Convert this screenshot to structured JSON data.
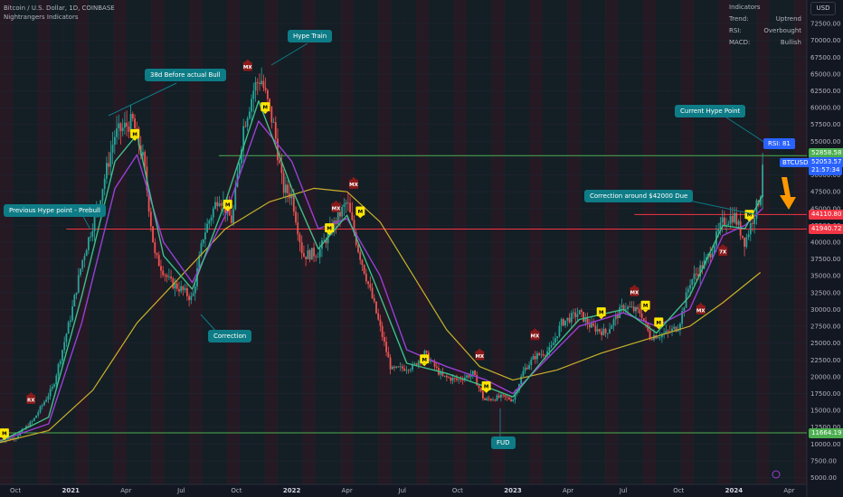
{
  "header": {
    "symbol_line": "Bitcoin / U.S. Dollar, 1D, COINBASE",
    "indicator_line": "Nightrangers Indicators"
  },
  "indicator_panel": {
    "title": "Indicators",
    "rows": [
      {
        "label": "Trend:",
        "value": "Uptrend"
      },
      {
        "label": "RSI:",
        "value": "Overbought"
      },
      {
        "label": "MACD:",
        "value": "Bullish"
      }
    ]
  },
  "currency": "USD",
  "price_tags": {
    "level_high": "52858.58",
    "current": "52053.57",
    "countdown": "21:57:34",
    "resistance": "44110.80",
    "support": "41940.72",
    "bottom": "11664.19"
  },
  "symbol_tag": "BTCUSD",
  "annotations": {
    "hype_train": "Hype Train",
    "days_before_bull": "38d Before actual Bull",
    "prev_hype": "Previous Hype point - Prebull",
    "correction": "Correction",
    "fud": "FUD",
    "correction_42k": "Correction around $42000 Due",
    "current_hype": "Current Hype Point",
    "rsi": "RSI: 81"
  },
  "colors": {
    "background": "#131722",
    "up": "#26a69a",
    "down": "#ef5350",
    "ma_slow": "#c9b02b",
    "ma_fast": "#9b3fd4",
    "ma_mid": "#3fbf8a",
    "annotation": "#0e7c86",
    "green_level": "#4caf50",
    "red_level": "#f23645"
  },
  "chart_data": {
    "type": "candlestick",
    "ylim": [
      4000,
      76000
    ],
    "y_ticks": [
      "5000.00",
      "7500.00",
      "10000.00",
      "12500.00",
      "15000.00",
      "17500.00",
      "20000.00",
      "22500.00",
      "25000.00",
      "27500.00",
      "30000.00",
      "32500.00",
      "35000.00",
      "37500.00",
      "40000.00",
      "42500.00",
      "45000.00",
      "47500.00",
      "50000.00",
      "52500.00",
      "55000.00",
      "57500.00",
      "60000.00",
      "62500.00",
      "65000.00",
      "67500.00",
      "70000.00",
      "72500.00"
    ],
    "x_ticks": [
      "Oct",
      "2021",
      "Apr",
      "Jul",
      "Oct",
      "2022",
      "Apr",
      "Jul",
      "Oct",
      "2023",
      "Apr",
      "Jul",
      "Oct",
      "2024",
      "Apr"
    ],
    "x_tick_values": [
      2020.75,
      2021.0,
      2021.25,
      2021.5,
      2021.75,
      2022.0,
      2022.25,
      2022.5,
      2022.75,
      2023.0,
      2023.25,
      2023.5,
      2023.75,
      2024.0,
      2024.25
    ],
    "xlim": [
      2020.68,
      2024.33
    ],
    "price_path": [
      [
        2020.68,
        10500
      ],
      [
        2020.75,
        11000
      ],
      [
        2020.83,
        13500
      ],
      [
        2020.92,
        18500
      ],
      [
        2021.0,
        29000
      ],
      [
        2021.05,
        37000
      ],
      [
        2021.12,
        45000
      ],
      [
        2021.2,
        56000
      ],
      [
        2021.28,
        58000
      ],
      [
        2021.33,
        52000
      ],
      [
        2021.38,
        38000
      ],
      [
        2021.45,
        34000
      ],
      [
        2021.5,
        33000
      ],
      [
        2021.55,
        31500
      ],
      [
        2021.6,
        41000
      ],
      [
        2021.67,
        47000
      ],
      [
        2021.73,
        43000
      ],
      [
        2021.78,
        57000
      ],
      [
        2021.83,
        63000
      ],
      [
        2021.86,
        64500
      ],
      [
        2021.92,
        57000
      ],
      [
        2021.96,
        48000
      ],
      [
        2022.0,
        47000
      ],
      [
        2022.05,
        38000
      ],
      [
        2022.12,
        38500
      ],
      [
        2022.18,
        42000
      ],
      [
        2022.25,
        46000
      ],
      [
        2022.3,
        39000
      ],
      [
        2022.37,
        31000
      ],
      [
        2022.45,
        21000
      ],
      [
        2022.55,
        21500
      ],
      [
        2022.6,
        23500
      ],
      [
        2022.68,
        20000
      ],
      [
        2022.75,
        19500
      ],
      [
        2022.82,
        20500
      ],
      [
        2022.87,
        16500
      ],
      [
        2022.95,
        17000
      ],
      [
        2023.0,
        16600
      ],
      [
        2023.05,
        21000
      ],
      [
        2023.1,
        23000
      ],
      [
        2023.17,
        24000
      ],
      [
        2023.22,
        28000
      ],
      [
        2023.3,
        29500
      ],
      [
        2023.35,
        27500
      ],
      [
        2023.42,
        26500
      ],
      [
        2023.5,
        30500
      ],
      [
        2023.58,
        29500
      ],
      [
        2023.62,
        26000
      ],
      [
        2023.7,
        26500
      ],
      [
        2023.75,
        27500
      ],
      [
        2023.8,
        34000
      ],
      [
        2023.88,
        37500
      ],
      [
        2023.95,
        43000
      ],
      [
        2024.0,
        44000
      ],
      [
        2024.05,
        40000
      ],
      [
        2024.08,
        43000
      ],
      [
        2024.12,
        47000
      ],
      [
        2024.13,
        52053
      ]
    ],
    "series": [
      {
        "name": "slow MA",
        "values": [
          [
            2020.68,
            10200
          ],
          [
            2020.9,
            12000
          ],
          [
            2021.1,
            18000
          ],
          [
            2021.3,
            28000
          ],
          [
            2021.5,
            35000
          ],
          [
            2021.7,
            42000
          ],
          [
            2021.9,
            46000
          ],
          [
            2022.1,
            48000
          ],
          [
            2022.25,
            47500
          ],
          [
            2022.4,
            43000
          ],
          [
            2022.55,
            35000
          ],
          [
            2022.7,
            27000
          ],
          [
            2022.85,
            21500
          ],
          [
            2023.0,
            19500
          ],
          [
            2023.2,
            21000
          ],
          [
            2023.4,
            23500
          ],
          [
            2023.6,
            25500
          ],
          [
            2023.8,
            27500
          ],
          [
            2023.95,
            31000
          ],
          [
            2024.12,
            35500
          ]
        ]
      },
      {
        "name": "fast MA",
        "values": [
          [
            2020.68,
            10500
          ],
          [
            2020.9,
            13000
          ],
          [
            2021.05,
            28000
          ],
          [
            2021.2,
            48000
          ],
          [
            2021.3,
            53000
          ],
          [
            2021.42,
            40000
          ],
          [
            2021.55,
            34000
          ],
          [
            2021.7,
            44000
          ],
          [
            2021.85,
            58000
          ],
          [
            2022.0,
            52000
          ],
          [
            2022.12,
            42000
          ],
          [
            2022.25,
            43500
          ],
          [
            2022.4,
            35000
          ],
          [
            2022.52,
            24000
          ],
          [
            2022.7,
            21500
          ],
          [
            2022.88,
            19500
          ],
          [
            2023.0,
            17500
          ],
          [
            2023.15,
            22500
          ],
          [
            2023.3,
            27500
          ],
          [
            2023.5,
            29500
          ],
          [
            2023.65,
            27500
          ],
          [
            2023.8,
            30000
          ],
          [
            2023.95,
            41000
          ],
          [
            2024.05,
            42500
          ],
          [
            2024.13,
            45000
          ]
        ]
      },
      {
        "name": "mid MA",
        "values": [
          [
            2020.68,
            10400
          ],
          [
            2020.9,
            14000
          ],
          [
            2021.05,
            32000
          ],
          [
            2021.2,
            52000
          ],
          [
            2021.3,
            56000
          ],
          [
            2021.42,
            38000
          ],
          [
            2021.55,
            33000
          ],
          [
            2021.7,
            46000
          ],
          [
            2021.85,
            61000
          ],
          [
            2022.0,
            48000
          ],
          [
            2022.12,
            39000
          ],
          [
            2022.25,
            44000
          ],
          [
            2022.4,
            32000
          ],
          [
            2022.52,
            22000
          ],
          [
            2022.7,
            20500
          ],
          [
            2022.88,
            18500
          ],
          [
            2023.0,
            17000
          ],
          [
            2023.15,
            23000
          ],
          [
            2023.3,
            28500
          ],
          [
            2023.5,
            30000
          ],
          [
            2023.65,
            26500
          ],
          [
            2023.8,
            32000
          ],
          [
            2023.95,
            42500
          ],
          [
            2024.05,
            42000
          ],
          [
            2024.13,
            47000
          ]
        ]
      }
    ],
    "signals": [
      {
        "label": "M",
        "kind": "buy",
        "x": 2020.7,
        "y": 11500
      },
      {
        "label": "RX",
        "kind": "sell",
        "x": 2020.82,
        "y": 16500
      },
      {
        "label": "M",
        "kind": "buy",
        "x": 2021.29,
        "y": 56000
      },
      {
        "label": "MX",
        "kind": "sell",
        "x": 2021.8,
        "y": 66000
      },
      {
        "label": "M",
        "kind": "buy",
        "x": 2021.88,
        "y": 60000
      },
      {
        "label": "M",
        "kind": "buy",
        "x": 2021.71,
        "y": 45500
      },
      {
        "label": "MX",
        "kind": "sell",
        "x": 2022.2,
        "y": 45000
      },
      {
        "label": "MX",
        "kind": "sell",
        "x": 2022.28,
        "y": 48500
      },
      {
        "label": "M",
        "kind": "buy",
        "x": 2022.17,
        "y": 42000
      },
      {
        "label": "M",
        "kind": "buy",
        "x": 2022.31,
        "y": 44500
      },
      {
        "label": "M",
        "kind": "buy",
        "x": 2022.6,
        "y": 22500
      },
      {
        "label": "MX",
        "kind": "sell",
        "x": 2022.85,
        "y": 23000
      },
      {
        "label": "M",
        "kind": "buy",
        "x": 2022.88,
        "y": 18500
      },
      {
        "label": "MX",
        "kind": "sell",
        "x": 2023.1,
        "y": 26000
      },
      {
        "label": "M",
        "kind": "buy",
        "x": 2023.4,
        "y": 29500
      },
      {
        "label": "MX",
        "kind": "sell",
        "x": 2023.55,
        "y": 32500
      },
      {
        "label": "M",
        "kind": "buy",
        "x": 2023.6,
        "y": 30500
      },
      {
        "label": "M",
        "kind": "buy",
        "x": 2023.66,
        "y": 28000
      },
      {
        "label": "MX",
        "kind": "sell",
        "x": 2023.85,
        "y": 29800
      },
      {
        "label": "7X",
        "kind": "sell",
        "x": 2023.95,
        "y": 38500
      },
      {
        "label": "M",
        "kind": "buy",
        "x": 2024.07,
        "y": 44000
      }
    ],
    "levels": [
      {
        "value": 52858.58,
        "color": "green",
        "from": 2021.67
      },
      {
        "value": 44110.8,
        "color": "red",
        "from": 2023.55
      },
      {
        "value": 41940.72,
        "color": "red",
        "from": 2020.98
      },
      {
        "value": 11664.19,
        "color": "green",
        "from": 2020.68
      }
    ]
  }
}
